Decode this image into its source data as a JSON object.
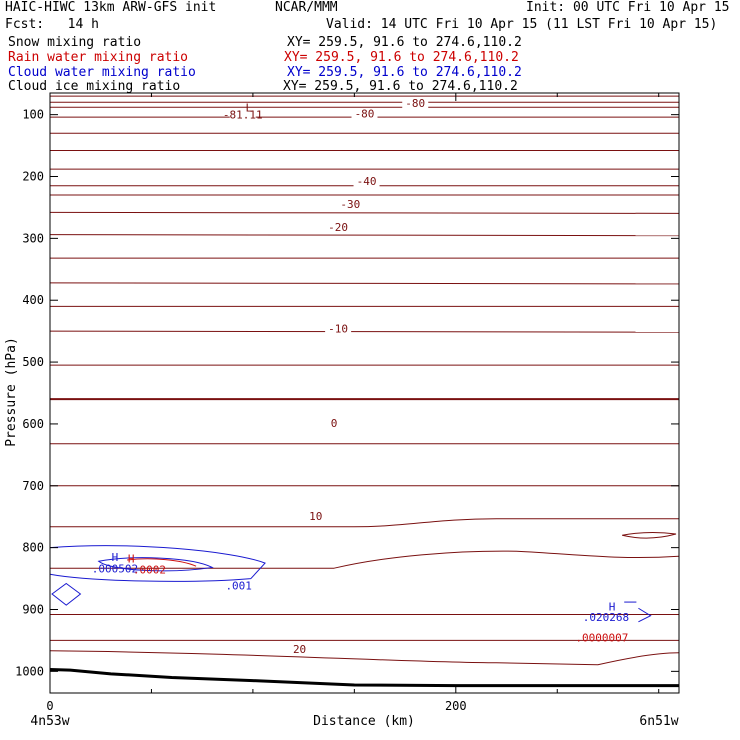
{
  "header": {
    "model": "HAIC-HIWC 13km ARW-GFS init",
    "org": "NCAR/MMM",
    "init": "Init: 00 UTC Fri 10 Apr 15",
    "fcst": "Fcst:   14 h",
    "valid": "Valid: 14 UTC Fri 10 Apr 15 (11 LST Fri 10 Apr 15)"
  },
  "fields": [
    {
      "name": "Snow mixing ratio",
      "xy": "XY= 259.5, 91.6 to 274.6,110.2",
      "color": "#000000"
    },
    {
      "name": "Rain water mixing ratio",
      "xy": "XY= 259.5, 91.6 to 274.6,110.2",
      "color": "#cc0000"
    },
    {
      "name": "Cloud water mixing ratio",
      "xy": "XY= 259.5, 91.6 to 274.6,110.2",
      "color": "#0000cc"
    },
    {
      "name": "Cloud ice mixing ratio",
      "xy": "XY= 259.5, 91.6 to 274.6,110.2",
      "color": "#000000"
    }
  ],
  "chart_data": {
    "type": "line",
    "xlabel": "Distance (km)",
    "ylabel": "Pressure (hPa)",
    "xlim": [
      0,
      310
    ],
    "ylim": [
      1035,
      65
    ],
    "x_ticks": [
      0,
      200
    ],
    "y_ticks": [
      100,
      200,
      300,
      400,
      500,
      600,
      700,
      800,
      900,
      1000
    ],
    "x_endpoint_labels": [
      "4n53w",
      "6n51w"
    ],
    "colors": {
      "temperature": "#7a1010",
      "cloud_water": "#1a1ad0",
      "rain": "#cc1010",
      "ground": "#000000"
    },
    "isotherm_pressures": [
      70,
      80,
      88,
      104,
      130,
      158,
      188,
      215,
      230,
      258,
      294,
      332,
      372,
      410,
      450,
      505,
      560,
      632,
      700,
      763,
      830,
      908,
      950,
      970
    ],
    "isotherm_labels": [
      {
        "text": "-80",
        "x": 180,
        "p": 88
      },
      {
        "text": "-81.11",
        "x": 95,
        "p": 106
      },
      {
        "text": "-80",
        "x": 155,
        "p": 105
      },
      {
        "text": "-40",
        "x": 156,
        "p": 214
      },
      {
        "text": "-30",
        "x": 148,
        "p": 251
      },
      {
        "text": "-20",
        "x": 142,
        "p": 288
      },
      {
        "text": "-10",
        "x": 142,
        "p": 452
      },
      {
        "text": "0",
        "x": 140,
        "p": 605
      },
      {
        "text": "10",
        "x": 131,
        "p": 755
      },
      {
        "text": "20",
        "x": 123,
        "p": 970
      }
    ],
    "ground_line": {
      "x": [
        0,
        10,
        30,
        60,
        100,
        150,
        200,
        250,
        310
      ],
      "p": [
        997,
        998,
        1004,
        1010,
        1015,
        1022,
        1023,
        1023,
        1023
      ]
    },
    "extrema_labels": [
      {
        "text": "L",
        "x": 98,
        "p": 95,
        "color": "temperature"
      },
      {
        "text": "H",
        "x": 32,
        "p": 822,
        "color": "cloud_water"
      },
      {
        "text": "H",
        "x": 40,
        "p": 824,
        "color": "rain"
      },
      {
        "text": "H",
        "x": 277,
        "p": 902,
        "color": "cloud_water"
      }
    ],
    "value_labels": [
      {
        "text": ".000502",
        "x": 32,
        "p": 840,
        "color": "cloud_water"
      },
      {
        "text": ".0002",
        "x": 49,
        "p": 842,
        "color": "rain"
      },
      {
        "text": ".001",
        "x": 93,
        "p": 868,
        "color": "cloud_water"
      },
      {
        "text": ".020268",
        "x": 274,
        "p": 919,
        "color": "cloud_water"
      },
      {
        "text": ".0000007",
        "x": 272,
        "p": 952,
        "color": "rain"
      }
    ]
  }
}
